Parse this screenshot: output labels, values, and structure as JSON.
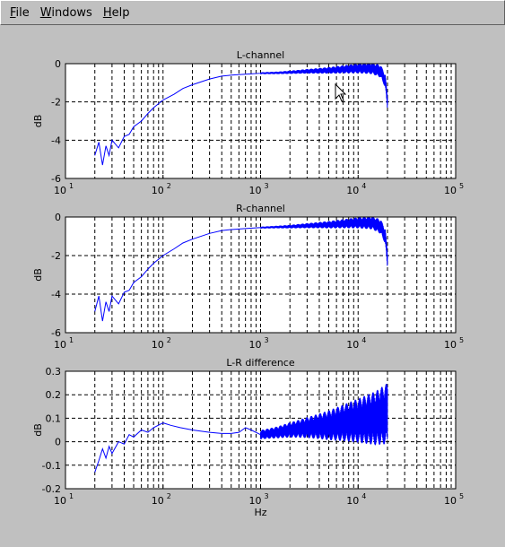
{
  "menu": {
    "items": [
      {
        "mnemonic": "F",
        "rest": "ile"
      },
      {
        "mnemonic": "W",
        "rest": "indows"
      },
      {
        "mnemonic": "H",
        "rest": "elp"
      }
    ]
  },
  "colors": {
    "background": "#c0c0c0",
    "axes_bg": "#ffffff",
    "line": "#0000ff",
    "grid": "#000000"
  },
  "chart_data": [
    {
      "type": "line",
      "title": "L-channel",
      "xlabel": "",
      "ylabel": "dB",
      "xscale": "log",
      "xlim": [
        10,
        100000
      ],
      "ylim": [
        -6,
        0
      ],
      "yticks": [
        "-6",
        "-4",
        "-2",
        "0"
      ],
      "xticks": [
        "10^1",
        "10^2",
        "10^3",
        "10^4",
        "10^5"
      ],
      "grid": true,
      "series": [
        {
          "x": [
            20,
            22,
            24,
            26,
            28,
            30,
            35,
            40,
            45,
            50,
            60,
            70,
            80,
            100,
            130,
            160,
            200,
            300,
            400,
            500,
            700,
            1000,
            1500,
            2000,
            3000,
            5000,
            7000,
            10000,
            14000,
            17000,
            19000,
            20000
          ],
          "y": [
            -4.8,
            -4.1,
            -5.3,
            -4.3,
            -4.8,
            -4.0,
            -4.4,
            -3.8,
            -3.7,
            -3.3,
            -3.0,
            -2.6,
            -2.3,
            -1.9,
            -1.6,
            -1.3,
            -1.1,
            -0.8,
            -0.65,
            -0.6,
            -0.55,
            -0.5,
            -0.48,
            -0.45,
            -0.4,
            -0.35,
            -0.3,
            -0.25,
            -0.25,
            -0.4,
            -0.9,
            -2.1
          ],
          "ripple_start_hz": 1000,
          "ripple_amplitude": [
            0.05,
            0.35
          ]
        }
      ]
    },
    {
      "type": "line",
      "title": "R-channel",
      "xlabel": "",
      "ylabel": "dB",
      "xscale": "log",
      "xlim": [
        10,
        100000
      ],
      "ylim": [
        -6,
        0
      ],
      "yticks": [
        "-6",
        "-4",
        "-2",
        "0"
      ],
      "xticks": [
        "10^1",
        "10^2",
        "10^3",
        "10^4",
        "10^5"
      ],
      "grid": true,
      "series": [
        {
          "x": [
            20,
            22,
            24,
            26,
            28,
            30,
            35,
            40,
            45,
            50,
            60,
            70,
            80,
            100,
            130,
            160,
            200,
            300,
            400,
            500,
            700,
            1000,
            1500,
            2000,
            3000,
            5000,
            7000,
            10000,
            14000,
            17000,
            19000,
            20000
          ],
          "y": [
            -4.9,
            -4.1,
            -5.4,
            -4.4,
            -4.9,
            -4.1,
            -4.5,
            -3.9,
            -3.8,
            -3.4,
            -3.1,
            -2.7,
            -2.4,
            -2.0,
            -1.65,
            -1.35,
            -1.15,
            -0.85,
            -0.7,
            -0.65,
            -0.6,
            -0.55,
            -0.52,
            -0.5,
            -0.45,
            -0.4,
            -0.35,
            -0.3,
            -0.3,
            -0.5,
            -1.0,
            -2.3
          ],
          "ripple_start_hz": 1000,
          "ripple_amplitude": [
            0.05,
            0.4
          ]
        }
      ]
    },
    {
      "type": "line",
      "title": "L-R difference",
      "xlabel": "Hz",
      "ylabel": "dB",
      "xscale": "log",
      "xlim": [
        10,
        100000
      ],
      "ylim": [
        -0.2,
        0.3
      ],
      "yticks": [
        "-0.2",
        "-0.1",
        "0",
        "0.1",
        "0.2",
        "0.3"
      ],
      "xticks": [
        "10^1",
        "10^2",
        "10^3",
        "10^4",
        "10^5"
      ],
      "grid": true,
      "series": [
        {
          "x": [
            20,
            22,
            24,
            26,
            28,
            30,
            35,
            40,
            45,
            50,
            60,
            70,
            80,
            100,
            120,
            150,
            200,
            300,
            400,
            500,
            600,
            700,
            800,
            1000,
            1500,
            2000,
            3000,
            5000,
            7000,
            10000,
            15000,
            20000
          ],
          "y": [
            -0.13,
            -0.08,
            -0.03,
            -0.07,
            -0.02,
            -0.05,
            0.0,
            -0.01,
            0.03,
            0.02,
            0.05,
            0.04,
            0.06,
            0.08,
            0.07,
            0.06,
            0.05,
            0.04,
            0.035,
            0.035,
            0.04,
            0.06,
            0.05,
            0.03,
            0.04,
            0.05,
            0.06,
            0.07,
            0.08,
            0.09,
            0.1,
            0.12
          ],
          "ripple_start_hz": 1000,
          "ripple_amplitude": [
            0.02,
            0.13
          ]
        }
      ]
    }
  ]
}
